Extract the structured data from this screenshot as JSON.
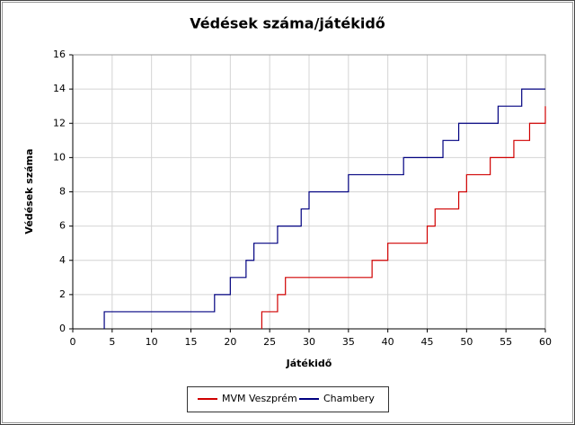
{
  "chart_data": {
    "type": "line",
    "step": "post",
    "title": "Védések száma/játékidő",
    "x_label": "Játékidő",
    "y_label": "Védések száma",
    "series": [
      {
        "name": "MVM Veszprém",
        "color": "#d00000",
        "x": [
          24,
          24,
          26,
          27,
          38,
          40,
          45,
          46,
          49,
          50,
          53,
          56,
          58,
          60
        ],
        "values": [
          0,
          1,
          2,
          3,
          4,
          5,
          6,
          7,
          8,
          9,
          10,
          11,
          12,
          13
        ]
      },
      {
        "name": "Chambery",
        "color": "#000080",
        "x": [
          4,
          4,
          18,
          20,
          22,
          23,
          26,
          29,
          30,
          35,
          42,
          47,
          49,
          54,
          57,
          60
        ],
        "values": [
          0,
          1,
          2,
          3,
          4,
          5,
          6,
          7,
          8,
          9,
          10,
          11,
          12,
          13,
          14,
          14
        ]
      }
    ],
    "xlim": [
      0,
      60
    ],
    "xticks": [
      0,
      5,
      10,
      15,
      20,
      25,
      30,
      35,
      40,
      45,
      50,
      55,
      60
    ],
    "ylim": [
      0,
      16
    ],
    "yticks": [
      0,
      2,
      4,
      6,
      8,
      10,
      12,
      14,
      16
    ],
    "grid": true,
    "legend": "bottom"
  }
}
